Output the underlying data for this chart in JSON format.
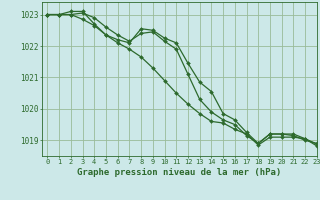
{
  "background_color": "#cce8e8",
  "grid_color": "#99bb99",
  "line_color": "#2d6a2d",
  "title": "Graphe pression niveau de la mer (hPa)",
  "xlim": [
    -0.5,
    23
  ],
  "ylim": [
    1018.5,
    1023.4
  ],
  "yticks": [
    1019,
    1020,
    1021,
    1022,
    1023
  ],
  "xticks": [
    0,
    1,
    2,
    3,
    4,
    5,
    6,
    7,
    8,
    9,
    10,
    11,
    12,
    13,
    14,
    15,
    16,
    17,
    18,
    19,
    20,
    21,
    22,
    23
  ],
  "series": [
    [
      1023.0,
      1023.0,
      1023.0,
      1023.05,
      1022.9,
      1022.6,
      1022.35,
      1022.15,
      1022.4,
      1022.45,
      1022.15,
      1021.9,
      1021.1,
      1020.3,
      1019.9,
      1019.65,
      1019.5,
      1019.15,
      1018.9,
      1019.2,
      1019.2,
      1019.15,
      1019.0,
      1018.9
    ],
    [
      1023.0,
      1023.0,
      1023.1,
      1023.1,
      1022.7,
      1022.35,
      1022.2,
      1022.1,
      1022.55,
      1022.5,
      1022.25,
      1022.1,
      1021.45,
      1020.85,
      1020.55,
      1019.85,
      1019.65,
      1019.25,
      1018.9,
      1019.2,
      1019.2,
      1019.2,
      1019.05,
      1018.88
    ],
    [
      1023.0,
      1023.0,
      1023.0,
      1022.85,
      1022.65,
      1022.35,
      1022.1,
      1021.9,
      1021.65,
      1021.3,
      1020.9,
      1020.5,
      1020.15,
      1019.85,
      1019.6,
      1019.55,
      1019.35,
      1019.2,
      1018.85,
      1019.1,
      1019.1,
      1019.1,
      1019.05,
      1018.82
    ]
  ],
  "ylabel_fontsize": 5.5,
  "xlabel_fontsize": 5.0,
  "title_fontsize": 6.5,
  "marker_size": 2.0,
  "line_width": 0.9
}
